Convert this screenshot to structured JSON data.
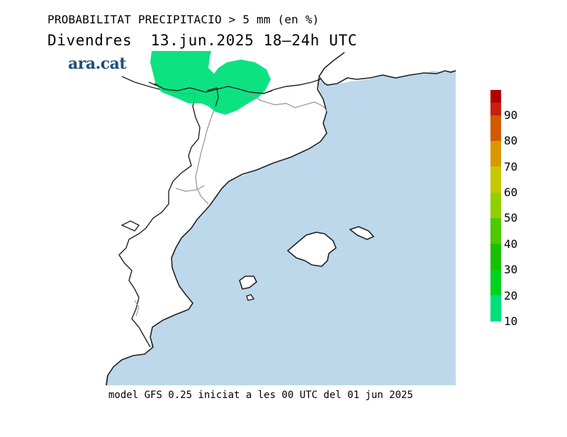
{
  "title": {
    "line1": "PROBABILITAT PRECIPITACIO > 5 mm (en %)",
    "line2": "Divendres  13.jun.2025 18–24h UTC"
  },
  "brand": "ara.cat",
  "footer": "model GFS 0.25 iniciat a les 00 UTC del 01 jun 2025",
  "legend": {
    "labels": [
      "10",
      "20",
      "30",
      "40",
      "50",
      "60",
      "70",
      "80",
      "90"
    ],
    "colors": [
      "#00e07a",
      "#00d21e",
      "#19c000",
      "#4ec800",
      "#90d000",
      "#c8c800",
      "#d89800",
      "#d25a00",
      "#c82010",
      "#b40000"
    ]
  },
  "map": {
    "sea_color": "#bcd8ea",
    "land_color": "#ffffff",
    "precip_areas": [
      {
        "probability_band": "10-20",
        "color": "#00e07a"
      }
    ]
  }
}
